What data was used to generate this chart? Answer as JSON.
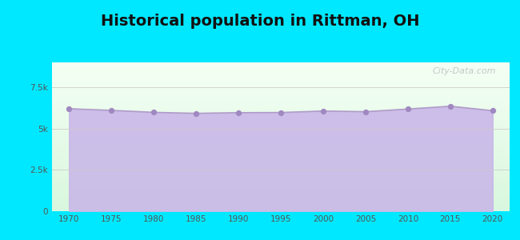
{
  "title": "Historical population in Rittman, OH",
  "years": [
    1970,
    1975,
    1980,
    1985,
    1990,
    1995,
    2000,
    2005,
    2010,
    2015,
    2020
  ],
  "population": [
    6200,
    6100,
    5980,
    5920,
    5960,
    5970,
    6060,
    6020,
    6180,
    6350,
    6080
  ],
  "ylim": [
    0,
    9000
  ],
  "yticks": [
    0,
    2500,
    5000,
    7500
  ],
  "ytick_labels": [
    "0",
    "2.5k",
    "5k",
    "7.5k"
  ],
  "fill_color": "#c9b8e8",
  "line_color": "#b09cc8",
  "marker_color": "#a088c0",
  "bg_outer": "#00e8ff",
  "title_fontsize": 14,
  "title_fontweight": "bold",
  "title_color": "#111111",
  "watermark": "City-Data.com"
}
